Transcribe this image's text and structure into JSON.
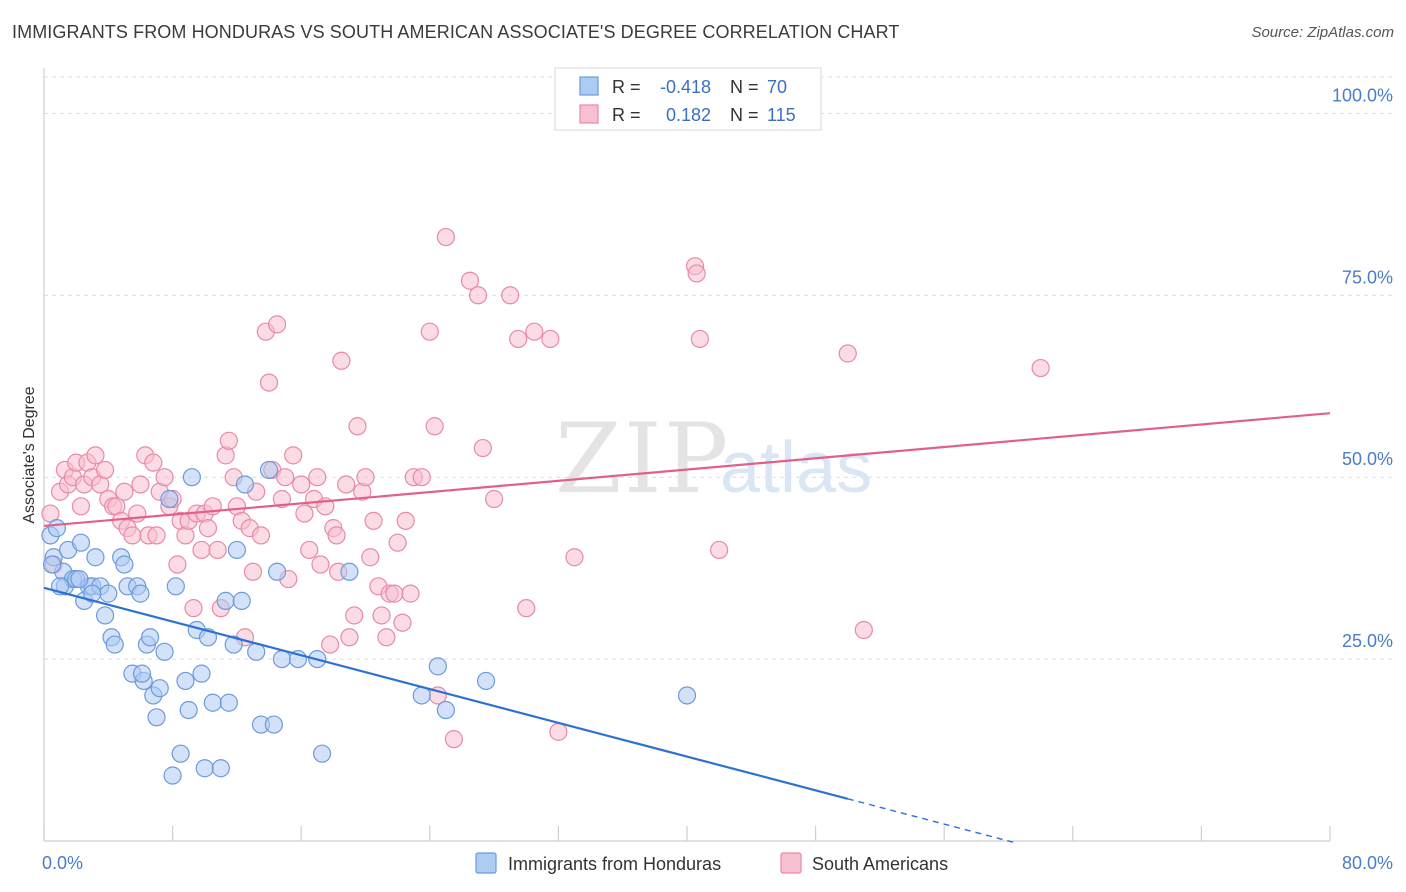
{
  "title": "IMMIGRANTS FROM HONDURAS VS SOUTH AMERICAN ASSOCIATE'S DEGREE CORRELATION CHART",
  "source": "Source: ZipAtlas.com",
  "watermark": {
    "zip": "ZIP",
    "atlas": "atlas"
  },
  "colors": {
    "blue_fill": "#aecbf2",
    "blue_stroke": "#6c9bdc",
    "blue_line": "#2d72d2",
    "pink_fill": "#f7c0d0",
    "pink_stroke": "#e88aa8",
    "pink_line": "#e0608a",
    "grid": "#dcdcdc",
    "tick_text": "#4a7cc7"
  },
  "stats_legend": {
    "rows": [
      {
        "r_label": "R =",
        "r_value": "-0.418",
        "n_label": "N =",
        "n_value": "70",
        "series": "blue"
      },
      {
        "r_label": "R =",
        "r_value": "0.182",
        "n_label": "N =",
        "n_value": "115",
        "series": "pink"
      }
    ]
  },
  "chart_data": {
    "type": "scatter",
    "xlabel": "",
    "ylabel": "Associate's Degree",
    "xlim": [
      0,
      80
    ],
    "ylim": [
      0,
      105
    ],
    "x_tick_labels": [
      "0.0%",
      "80.0%"
    ],
    "y_tick_labels": [
      "25.0%",
      "50.0%",
      "75.0%",
      "100.0%"
    ],
    "y_ticks": [
      25,
      50,
      75,
      100
    ],
    "grid": true,
    "legend_position": "bottom-center",
    "series": [
      {
        "name": "Immigrants from Honduras",
        "color": "blue",
        "trend": {
          "x0": 0,
          "y0": 34.8,
          "x1": 50,
          "y1": 5.8,
          "dash_to_x": 60.5
        },
        "points": [
          [
            0.4,
            42
          ],
          [
            0.6,
            39
          ],
          [
            0.8,
            43
          ],
          [
            1.2,
            37
          ],
          [
            1.3,
            35
          ],
          [
            1.5,
            40
          ],
          [
            1.8,
            36
          ],
          [
            2,
            36
          ],
          [
            2.3,
            41
          ],
          [
            2.5,
            33
          ],
          [
            2.8,
            35
          ],
          [
            3,
            35
          ],
          [
            3.2,
            39
          ],
          [
            3.5,
            35
          ],
          [
            3.8,
            31
          ],
          [
            4,
            34
          ],
          [
            4.2,
            28
          ],
          [
            4.4,
            27
          ],
          [
            4.8,
            39
          ],
          [
            5,
            38
          ],
          [
            5.2,
            35
          ],
          [
            5.5,
            23
          ],
          [
            5.8,
            35
          ],
          [
            6,
            34
          ],
          [
            6.2,
            22
          ],
          [
            6.4,
            27
          ],
          [
            6.6,
            28
          ],
          [
            6.8,
            20
          ],
          [
            7,
            17
          ],
          [
            7.2,
            21
          ],
          [
            7.5,
            26
          ],
          [
            7.8,
            47
          ],
          [
            8.2,
            35
          ],
          [
            8.5,
            12
          ],
          [
            8.8,
            22
          ],
          [
            9,
            18
          ],
          [
            9.2,
            50
          ],
          [
            9.5,
            29
          ],
          [
            9.8,
            23
          ],
          [
            10,
            10
          ],
          [
            10.2,
            28
          ],
          [
            10.5,
            19
          ],
          [
            11,
            10
          ],
          [
            11.3,
            33
          ],
          [
            11.5,
            19
          ],
          [
            11.8,
            27
          ],
          [
            12,
            40
          ],
          [
            12.3,
            33
          ],
          [
            12.5,
            49
          ],
          [
            13.2,
            26
          ],
          [
            13.5,
            16
          ],
          [
            14,
            51
          ],
          [
            14.3,
            16
          ],
          [
            14.5,
            37
          ],
          [
            14.8,
            25
          ],
          [
            15.8,
            25
          ],
          [
            17,
            25
          ],
          [
            17.3,
            12
          ],
          [
            19,
            37
          ],
          [
            23.5,
            20
          ],
          [
            24.5,
            24
          ],
          [
            25,
            18
          ],
          [
            27.5,
            22
          ],
          [
            40,
            20
          ],
          [
            8,
            9
          ],
          [
            3,
            34
          ],
          [
            1,
            35
          ],
          [
            0.5,
            38
          ],
          [
            2.2,
            36
          ],
          [
            6.1,
            23
          ]
        ]
      },
      {
        "name": "South Americans",
        "color": "pink",
        "trend": {
          "x0": 0,
          "y0": 43.3,
          "x1": 80,
          "y1": 58.8
        },
        "points": [
          [
            0.4,
            45
          ],
          [
            0.6,
            38
          ],
          [
            1,
            48
          ],
          [
            1.3,
            51
          ],
          [
            1.5,
            49
          ],
          [
            1.8,
            50
          ],
          [
            2,
            52
          ],
          [
            2.3,
            46
          ],
          [
            2.5,
            49
          ],
          [
            2.7,
            52
          ],
          [
            3,
            50
          ],
          [
            3.2,
            53
          ],
          [
            3.5,
            49
          ],
          [
            3.8,
            51
          ],
          [
            4,
            47
          ],
          [
            4.3,
            46
          ],
          [
            4.5,
            46
          ],
          [
            4.8,
            44
          ],
          [
            5,
            48
          ],
          [
            5.2,
            43
          ],
          [
            5.5,
            42
          ],
          [
            5.8,
            45
          ],
          [
            6,
            49
          ],
          [
            6.3,
            53
          ],
          [
            6.5,
            42
          ],
          [
            6.8,
            52
          ],
          [
            7,
            42
          ],
          [
            7.2,
            48
          ],
          [
            7.5,
            50
          ],
          [
            7.8,
            46
          ],
          [
            8,
            47
          ],
          [
            8.3,
            38
          ],
          [
            8.5,
            44
          ],
          [
            8.8,
            42
          ],
          [
            9,
            44
          ],
          [
            9.3,
            32
          ],
          [
            9.5,
            45
          ],
          [
            9.8,
            40
          ],
          [
            10,
            45
          ],
          [
            10.2,
            43
          ],
          [
            10.5,
            46
          ],
          [
            10.8,
            40
          ],
          [
            11,
            32
          ],
          [
            11.3,
            53
          ],
          [
            11.5,
            55
          ],
          [
            11.8,
            50
          ],
          [
            12,
            46
          ],
          [
            12.3,
            44
          ],
          [
            12.5,
            28
          ],
          [
            12.8,
            43
          ],
          [
            13,
            37
          ],
          [
            13.2,
            48
          ],
          [
            13.5,
            42
          ],
          [
            13.8,
            70
          ],
          [
            14,
            63
          ],
          [
            14.2,
            51
          ],
          [
            14.5,
            71
          ],
          [
            14.8,
            47
          ],
          [
            15,
            50
          ],
          [
            15.2,
            36
          ],
          [
            15.5,
            53
          ],
          [
            16,
            49
          ],
          [
            16.2,
            45
          ],
          [
            16.5,
            40
          ],
          [
            16.8,
            47
          ],
          [
            17,
            50
          ],
          [
            17.2,
            38
          ],
          [
            17.5,
            46
          ],
          [
            17.8,
            27
          ],
          [
            18,
            43
          ],
          [
            18.3,
            37
          ],
          [
            18.5,
            66
          ],
          [
            18.8,
            49
          ],
          [
            19,
            28
          ],
          [
            19.3,
            31
          ],
          [
            19.5,
            57
          ],
          [
            19.8,
            48
          ],
          [
            20,
            50
          ],
          [
            20.3,
            39
          ],
          [
            20.5,
            44
          ],
          [
            20.8,
            35
          ],
          [
            21,
            31
          ],
          [
            21.3,
            28
          ],
          [
            21.5,
            34
          ],
          [
            21.8,
            34
          ],
          [
            22,
            41
          ],
          [
            22.3,
            30
          ],
          [
            22.5,
            44
          ],
          [
            22.8,
            34
          ],
          [
            23,
            50
          ],
          [
            23.5,
            50
          ],
          [
            24,
            70
          ],
          [
            24.3,
            57
          ],
          [
            24.5,
            20
          ],
          [
            25,
            83
          ],
          [
            25.5,
            14
          ],
          [
            26.5,
            77
          ],
          [
            27,
            75
          ],
          [
            27.3,
            54
          ],
          [
            28,
            47
          ],
          [
            29,
            75
          ],
          [
            29.5,
            69
          ],
          [
            30,
            32
          ],
          [
            30.5,
            70
          ],
          [
            31.5,
            69
          ],
          [
            32,
            15
          ],
          [
            33,
            39
          ],
          [
            40.5,
            79
          ],
          [
            40.8,
            69
          ],
          [
            42,
            40
          ],
          [
            50,
            67
          ],
          [
            51,
            29
          ],
          [
            62,
            65
          ],
          [
            40.6,
            78
          ],
          [
            18.2,
            42
          ]
        ]
      }
    ]
  },
  "bottom_legend": {
    "items": [
      {
        "label": "Immigrants from Honduras",
        "series": "blue"
      },
      {
        "label": "South Americans",
        "series": "pink"
      }
    ]
  }
}
